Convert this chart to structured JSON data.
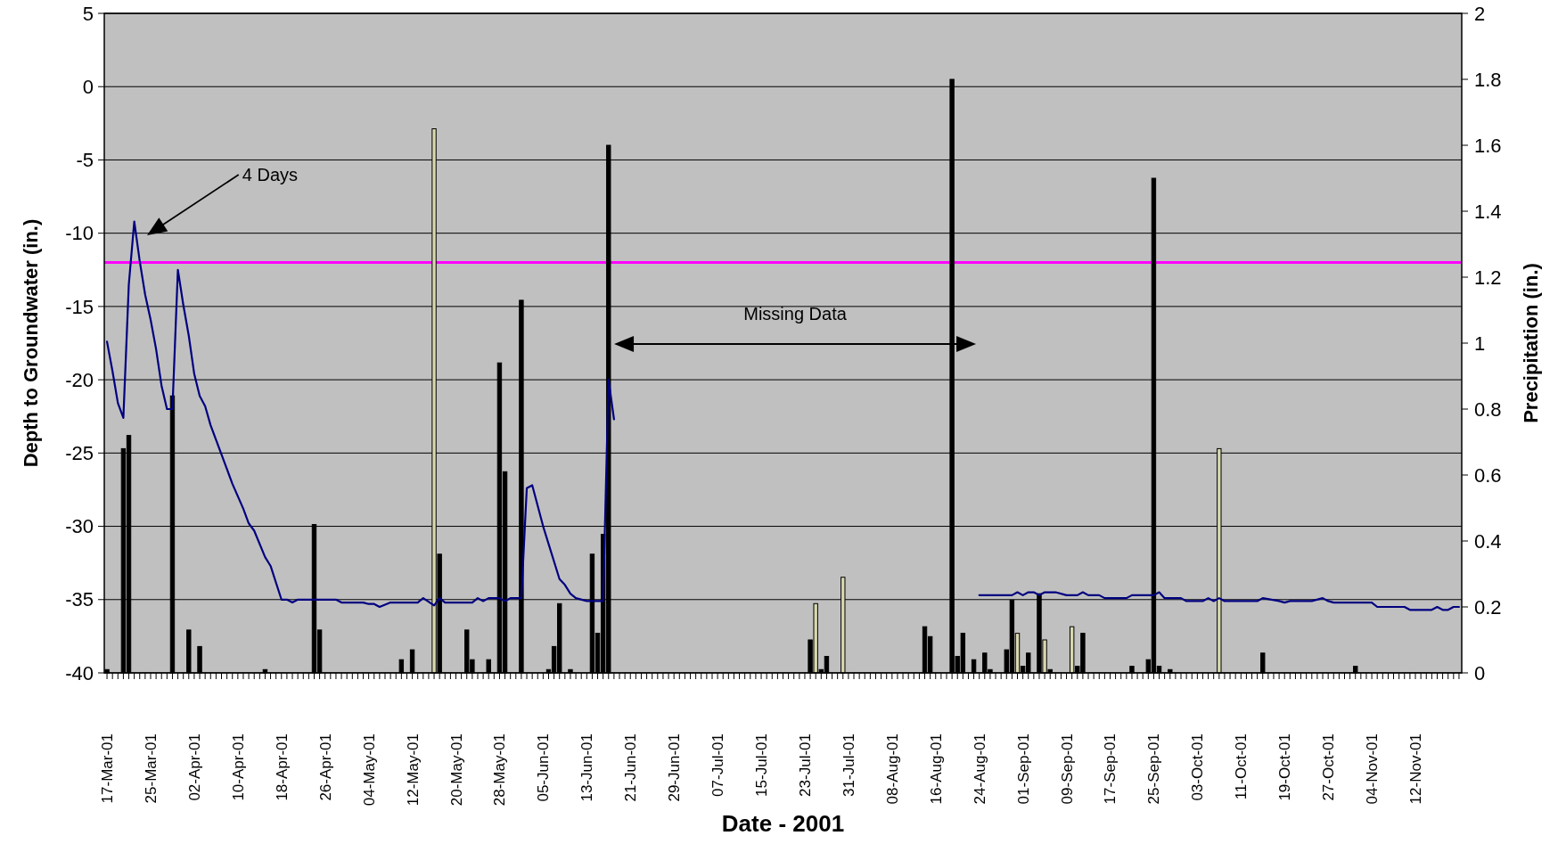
{
  "chart_data": {
    "type": "bar",
    "xlabel": "Date - 2001",
    "ylabel": "Depth to Groundwater (in.)",
    "y2label": "Precipitation (in.)",
    "xlim": [
      "2001-03-16T12:00",
      "2001-11-20T12:00"
    ],
    "xticks": [
      {
        "value": "2001-03-17",
        "label": "17-Mar-01"
      },
      {
        "value": "2001-03-25",
        "label": "25-Mar-01"
      },
      {
        "value": "2001-04-02",
        "label": "02-Apr-01"
      },
      {
        "value": "2001-04-10",
        "label": "10-Apr-01"
      },
      {
        "value": "2001-04-18",
        "label": "18-Apr-01"
      },
      {
        "value": "2001-04-26",
        "label": "26-Apr-01"
      },
      {
        "value": "2001-05-04",
        "label": "04-May-01"
      },
      {
        "value": "2001-05-12",
        "label": "12-May-01"
      },
      {
        "value": "2001-05-20",
        "label": "20-May-01"
      },
      {
        "value": "2001-05-28",
        "label": "28-May-01"
      },
      {
        "value": "2001-06-05",
        "label": "05-Jun-01"
      },
      {
        "value": "2001-06-13",
        "label": "13-Jun-01"
      },
      {
        "value": "2001-06-21",
        "label": "21-Jun-01"
      },
      {
        "value": "2001-06-29",
        "label": "29-Jun-01"
      },
      {
        "value": "2001-07-07",
        "label": "07-Jul-01"
      },
      {
        "value": "2001-07-15",
        "label": "15-Jul-01"
      },
      {
        "value": "2001-07-23",
        "label": "23-Jul-01"
      },
      {
        "value": "2001-07-31",
        "label": "31-Jul-01"
      },
      {
        "value": "2001-08-08",
        "label": "08-Aug-01"
      },
      {
        "value": "2001-08-16",
        "label": "16-Aug-01"
      },
      {
        "value": "2001-08-24",
        "label": "24-Aug-01"
      },
      {
        "value": "2001-09-01",
        "label": "01-Sep-01"
      },
      {
        "value": "2001-09-09",
        "label": "09-Sep-01"
      },
      {
        "value": "2001-09-17",
        "label": "17-Sep-01"
      },
      {
        "value": "2001-09-25",
        "label": "25-Sep-01"
      },
      {
        "value": "2001-10-03",
        "label": "03-Oct-01"
      },
      {
        "value": "2001-10-11",
        "label": "11-Oct-01"
      },
      {
        "value": "2001-10-19",
        "label": "19-Oct-01"
      },
      {
        "value": "2001-10-27",
        "label": "27-Oct-01"
      },
      {
        "value": "2001-11-04",
        "label": "04-Nov-01"
      },
      {
        "value": "2001-11-12",
        "label": "12-Nov-01"
      }
    ],
    "ylim": [
      -40,
      5
    ],
    "yticks": [
      -40,
      -35,
      -30,
      -25,
      -20,
      -15,
      -10,
      -5,
      0,
      5
    ],
    "y2lim": [
      0,
      2
    ],
    "y2ticks": [
      0,
      0.2,
      0.4,
      0.6,
      0.8,
      1,
      1.2,
      1.4,
      1.6,
      1.8,
      2
    ],
    "grid": "y",
    "ref_lines": [
      {
        "axis": "y",
        "value": -12,
        "color": "#ff00ff"
      }
    ],
    "annotations": [
      "4 Days",
      "Missing Data"
    ],
    "series": [
      {
        "axis": "y2",
        "x": [
          "2001-03-17",
          "2001-03-20",
          "2001-03-21",
          "2001-03-29",
          "2001-04-01",
          "2001-04-03",
          "2001-04-15",
          "2001-04-24",
          "2001-04-25",
          "2001-05-10",
          "2001-05-12",
          "2001-05-16",
          "2001-05-17",
          "2001-05-22",
          "2001-05-23",
          "2001-05-26",
          "2001-05-28",
          "2001-05-29",
          "2001-06-01",
          "2001-06-06",
          "2001-06-07",
          "2001-06-08",
          "2001-06-10",
          "2001-06-14",
          "2001-06-15",
          "2001-06-16",
          "2001-06-17",
          "2001-07-24",
          "2001-07-25",
          "2001-07-26",
          "2001-07-27",
          "2001-07-30",
          "2001-08-14",
          "2001-08-15",
          "2001-08-19",
          "2001-08-20",
          "2001-08-21",
          "2001-08-23",
          "2001-08-25",
          "2001-08-26",
          "2001-08-29",
          "2001-08-30",
          "2001-08-31",
          "2001-09-01",
          "2001-09-02",
          "2001-09-04",
          "2001-09-05",
          "2001-09-06",
          "2001-09-10",
          "2001-09-11",
          "2001-09-12",
          "2001-09-21",
          "2001-09-24",
          "2001-09-25",
          "2001-09-26",
          "2001-09-28",
          "2001-10-07",
          "2001-10-15",
          "2001-11-01"
        ],
        "values": [
          0.01,
          0.68,
          0.72,
          0.84,
          0.13,
          0.08,
          0.01,
          0.45,
          0.13,
          0.04,
          0.07,
          1.65,
          0.36,
          0.13,
          0.04,
          0.04,
          0.94,
          0.61,
          1.13,
          0.01,
          0.08,
          0.21,
          0.01,
          0.36,
          0.12,
          0.42,
          1.6,
          0.1,
          0.21,
          0.01,
          0.05,
          0.29,
          0.14,
          0.11,
          1.8,
          0.05,
          0.12,
          0.04,
          0.06,
          0.01,
          0.07,
          0.22,
          0.12,
          0.02,
          0.06,
          0.24,
          0.1,
          0.01,
          0.14,
          0.02,
          0.12,
          0.02,
          0.04,
          1.5,
          0.02,
          0.01,
          0.68,
          0.06,
          0.02
        ],
        "colors": [
          "#000000",
          "#000000",
          "#000000",
          "#000000",
          "#000000",
          "#000000",
          "#000000",
          "#000000",
          "#000000",
          "#000000",
          "#000000",
          "#d8d8b0",
          "#000000",
          "#000000",
          "#000000",
          "#000000",
          "#000000",
          "#000000",
          "#000000",
          "#000000",
          "#000000",
          "#000000",
          "#000000",
          "#000000",
          "#000000",
          "#000000",
          "#000000",
          "#000000",
          "#d8d8b0",
          "#000000",
          "#000000",
          "#d8d8b0",
          "#000000",
          "#000000",
          "#000000",
          "#000000",
          "#000000",
          "#000000",
          "#000000",
          "#000000",
          "#000000",
          "#000000",
          "#d8d8b0",
          "#000000",
          "#000000",
          "#000000",
          "#d8d8b0",
          "#000000",
          "#d8d8b0",
          "#000000",
          "#000000",
          "#000000",
          "#000000",
          "#000000",
          "#000000",
          "#000000",
          "#d8d8b0",
          "#000000",
          "#000000"
        ]
      },
      {
        "type": "line",
        "color": "#000080",
        "x": [
          "2001-03-17",
          "2001-03-18",
          "2001-03-19",
          "2001-03-20",
          "2001-03-21",
          "2001-03-22",
          "2001-03-23",
          "2001-03-24",
          "2001-03-25",
          "2001-03-26",
          "2001-03-27",
          "2001-03-28",
          "2001-03-29",
          "2001-03-30",
          "2001-03-31",
          "2001-04-01",
          "2001-04-02",
          "2001-04-03",
          "2001-04-04",
          "2001-04-05",
          "2001-04-07",
          "2001-04-09",
          "2001-04-11",
          "2001-04-12",
          "2001-04-13",
          "2001-04-15",
          "2001-04-16",
          "2001-04-18",
          "2001-04-19",
          "2001-04-20",
          "2001-04-21",
          "2001-04-28",
          "2001-04-29",
          "2001-05-03",
          "2001-05-04",
          "2001-05-05",
          "2001-05-06",
          "2001-05-08",
          "2001-05-13",
          "2001-05-14",
          "2001-05-16",
          "2001-05-17",
          "2001-05-18",
          "2001-05-23",
          "2001-05-24",
          "2001-05-25",
          "2001-05-26",
          "2001-05-28",
          "2001-05-29",
          "2001-05-30",
          "2001-06-01",
          "2001-06-02",
          "2001-06-03",
          "2001-06-05",
          "2001-06-08",
          "2001-06-09",
          "2001-06-10",
          "2001-06-11",
          "2001-06-13",
          "2001-06-16",
          "2001-06-17",
          "2001-06-18",
          "2001-07-22",
          "2001-08-24",
          "2001-08-30",
          "2001-08-31",
          "2001-09-01",
          "2001-09-02",
          "2001-09-03",
          "2001-09-04",
          "2001-09-05",
          "2001-09-07",
          "2001-09-09",
          "2001-09-11",
          "2001-09-12",
          "2001-09-13",
          "2001-09-15",
          "2001-09-16",
          "2001-09-20",
          "2001-09-21",
          "2001-09-25",
          "2001-09-26",
          "2001-09-27",
          "2001-09-30",
          "2001-10-01",
          "2001-10-04",
          "2001-10-05",
          "2001-10-06",
          "2001-10-07",
          "2001-10-08",
          "2001-10-14",
          "2001-10-15",
          "2001-10-18",
          "2001-10-19",
          "2001-10-20",
          "2001-10-24",
          "2001-10-26",
          "2001-10-27",
          "2001-10-28",
          "2001-11-04",
          "2001-11-05",
          "2001-11-10",
          "2001-11-11",
          "2001-11-15",
          "2001-11-16",
          "2001-11-17",
          "2001-11-18",
          "2001-11-19",
          "2001-11-20"
        ],
        "values": [
          -17.4,
          -19.4,
          -21.6,
          -22.6,
          -13.5,
          -9.2,
          -11.9,
          -14.2,
          -15.9,
          -17.9,
          -20.4,
          -22,
          -22,
          -12.5,
          -14.9,
          -17,
          -19.6,
          -21.1,
          -21.8,
          -23.1,
          -25.1,
          -27.1,
          -28.8,
          -29.8,
          -30.3,
          -32.1,
          -32.7,
          -35,
          -35,
          -35.2,
          -35,
          -35,
          -35.2,
          -35.2,
          -35.3,
          -35.3,
          -35.5,
          -35.2,
          -35.2,
          -34.9,
          -35.4,
          -34.9,
          -35.2,
          -35.2,
          -34.9,
          -35.1,
          -34.9,
          -34.9,
          -35.1,
          -34.9,
          -34.9,
          -27.4,
          -27.2,
          -30,
          -33.6,
          -34,
          -34.6,
          -34.9,
          -35.1,
          -35.1,
          -20,
          -22.7,
          null,
          -34.7,
          -34.7,
          -34.5,
          -34.7,
          -34.5,
          -34.5,
          -34.7,
          -34.5,
          -34.5,
          -34.7,
          -34.7,
          -34.5,
          -34.7,
          -34.7,
          -34.9,
          -34.9,
          -34.7,
          -34.7,
          -34.5,
          -34.9,
          -34.9,
          -35.1,
          -35.1,
          -34.9,
          -35.1,
          -34.9,
          -35.1,
          -35.1,
          -34.9,
          -35.1,
          -35.2,
          -35.1,
          -35.1,
          -34.9,
          -35.1,
          -35.2,
          -35.2,
          -35.5,
          -35.5,
          -35.7,
          -35.7,
          -35.5,
          -35.7,
          -35.7,
          -35.5,
          -35.5
        ]
      }
    ]
  }
}
